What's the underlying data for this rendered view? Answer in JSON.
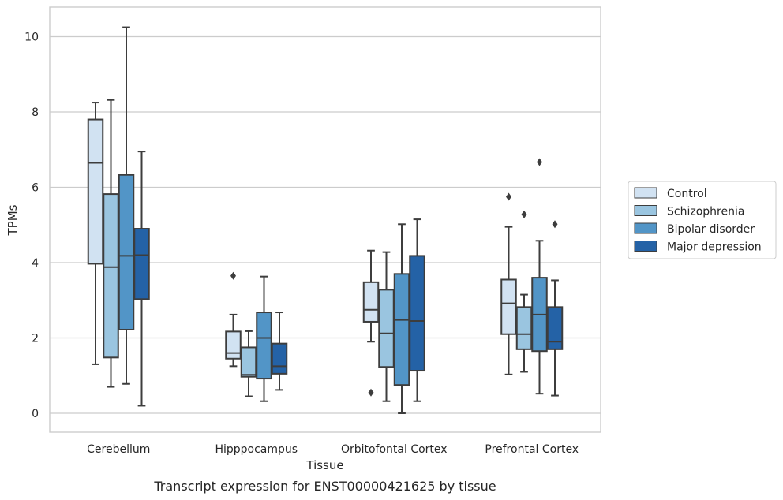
{
  "chart_data": {
    "type": "box",
    "title": "",
    "caption": "Transcript expression for ENST00000421625 by tissue",
    "xlabel": "Tissue",
    "ylabel": "TPMs",
    "ylim": [
      -0.5,
      10.75
    ],
    "yticks": [
      0,
      2,
      4,
      6,
      8,
      10
    ],
    "grid": "horizontal",
    "legend_position": "right",
    "categories": [
      "Cerebellum",
      "Hipppocampus",
      "Orbitofontal Cortex",
      "Prefrontal Cortex"
    ],
    "series": [
      {
        "name": "Control",
        "color": "#d1e2f2",
        "boxes": [
          {
            "whisker_low": 1.3,
            "q1": 3.97,
            "median": 6.65,
            "q3": 7.8,
            "whisker_high": 8.25,
            "outliers": []
          },
          {
            "whisker_low": 1.25,
            "q1": 1.45,
            "median": 1.6,
            "q3": 2.17,
            "whisker_high": 2.62,
            "outliers": [
              3.65
            ]
          },
          {
            "whisker_low": 1.9,
            "q1": 2.43,
            "median": 2.75,
            "q3": 3.48,
            "whisker_high": 4.32,
            "outliers": [
              0.55
            ]
          },
          {
            "whisker_low": 1.03,
            "q1": 2.1,
            "median": 2.92,
            "q3": 3.55,
            "whisker_high": 4.95,
            "outliers": [
              5.75
            ]
          }
        ]
      },
      {
        "name": "Schizophrenia",
        "color": "#9ac5e0",
        "boxes": [
          {
            "whisker_low": 0.7,
            "q1": 1.48,
            "median": 3.88,
            "q3": 5.82,
            "whisker_high": 8.32,
            "outliers": []
          },
          {
            "whisker_low": 0.45,
            "q1": 0.97,
            "median": 1.02,
            "q3": 1.75,
            "whisker_high": 2.18,
            "outliers": []
          },
          {
            "whisker_low": 0.32,
            "q1": 1.23,
            "median": 2.12,
            "q3": 3.28,
            "whisker_high": 4.28,
            "outliers": []
          },
          {
            "whisker_low": 1.1,
            "q1": 1.7,
            "median": 2.1,
            "q3": 2.82,
            "whisker_high": 3.15,
            "outliers": [
              5.28
            ]
          }
        ]
      },
      {
        "name": "Bipolar disorder",
        "color": "#5295c7",
        "boxes": [
          {
            "whisker_low": 0.78,
            "q1": 2.22,
            "median": 4.18,
            "q3": 6.33,
            "whisker_high": 10.25,
            "outliers": []
          },
          {
            "whisker_low": 0.32,
            "q1": 0.92,
            "median": 2.0,
            "q3": 2.68,
            "whisker_high": 3.63,
            "outliers": []
          },
          {
            "whisker_low": 0.0,
            "q1": 0.75,
            "median": 2.48,
            "q3": 3.7,
            "whisker_high": 5.02,
            "outliers": []
          },
          {
            "whisker_low": 0.52,
            "q1": 1.65,
            "median": 2.62,
            "q3": 3.6,
            "whisker_high": 4.58,
            "outliers": [
              6.67
            ]
          }
        ]
      },
      {
        "name": "Major depression",
        "color": "#2462a6",
        "boxes": [
          {
            "whisker_low": 0.2,
            "q1": 3.03,
            "median": 4.2,
            "q3": 4.9,
            "whisker_high": 6.95,
            "outliers": []
          },
          {
            "whisker_low": 0.62,
            "q1": 1.05,
            "median": 1.25,
            "q3": 1.85,
            "whisker_high": 2.68,
            "outliers": []
          },
          {
            "whisker_low": 0.32,
            "q1": 1.13,
            "median": 2.45,
            "q3": 4.18,
            "whisker_high": 5.15,
            "outliers": []
          },
          {
            "whisker_low": 0.47,
            "q1": 1.7,
            "median": 1.9,
            "q3": 2.82,
            "whisker_high": 3.53,
            "outliers": [
              5.02
            ]
          }
        ]
      }
    ]
  }
}
